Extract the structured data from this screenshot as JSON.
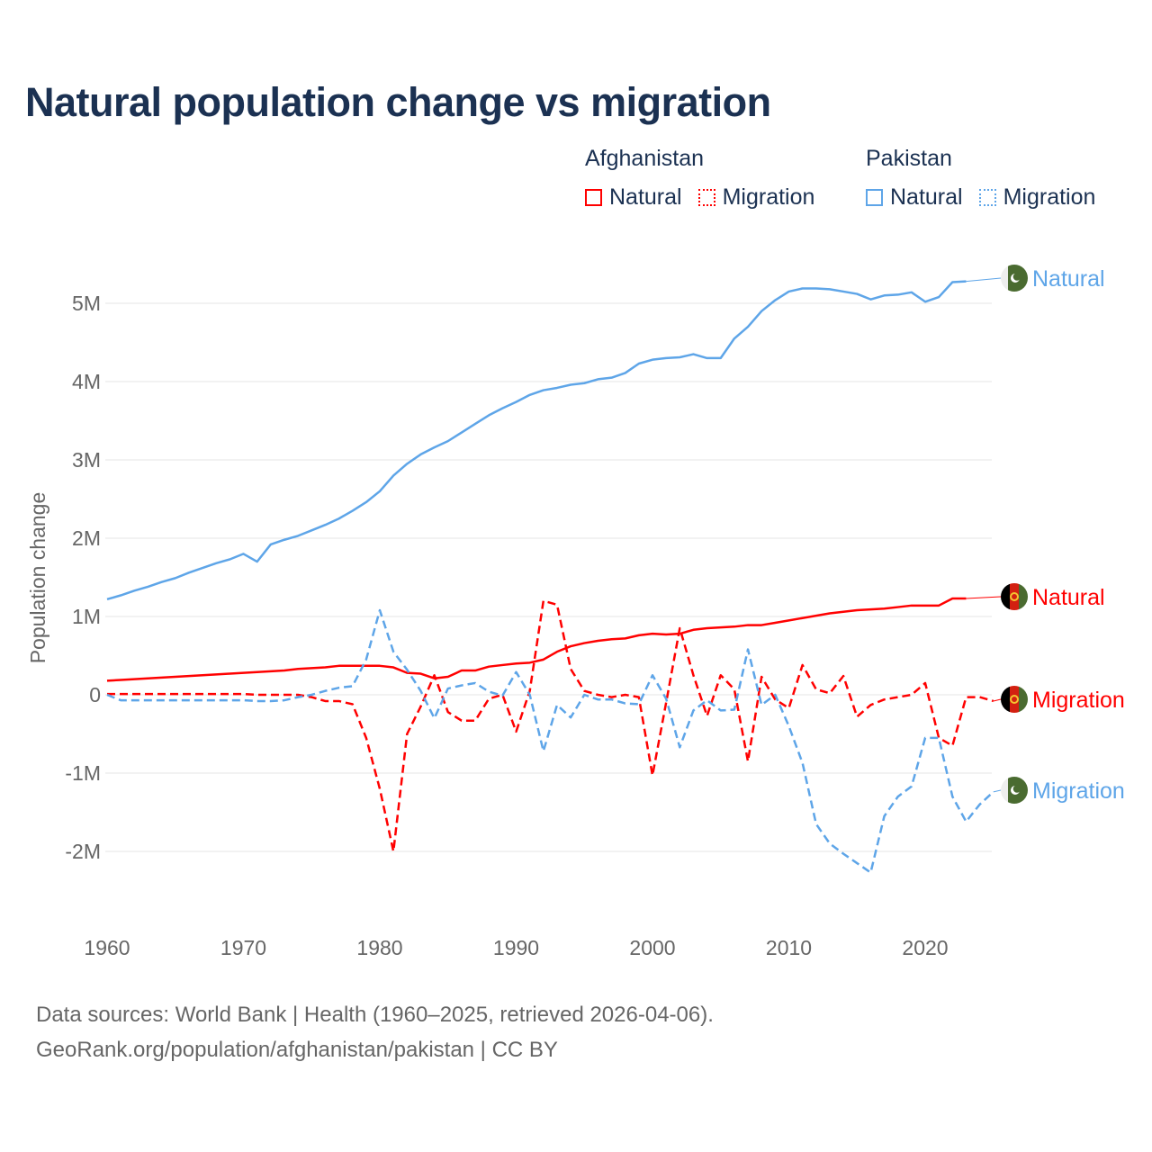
{
  "title": "Natural population change vs migration",
  "legend": {
    "groups": [
      {
        "name": "Afghanistan",
        "color": "#ff0000",
        "items": [
          "Natural",
          "Migration"
        ]
      },
      {
        "name": "Pakistan",
        "color": "#5ea5e8",
        "items": [
          "Natural",
          "Migration"
        ]
      }
    ]
  },
  "footer": {
    "line1": "Data sources: World Bank | Health (1960–2025, retrieved 2026-04-06).",
    "line2": "GeoRank.org/population/afghanistan/pakistan | CC BY"
  },
  "chart_data": {
    "type": "line",
    "title": "Natural population change vs migration",
    "xlabel": "",
    "ylabel": "Population change",
    "xlim": [
      1960,
      2025
    ],
    "ylim": [
      -2.6,
      5.6
    ],
    "x_ticks": [
      1960,
      1970,
      1980,
      1990,
      2000,
      2010,
      2020
    ],
    "y_ticks": [
      {
        "v": 5,
        "label": "5M"
      },
      {
        "v": 4,
        "label": "4M"
      },
      {
        "v": 3,
        "label": "3M"
      },
      {
        "v": 2,
        "label": "2M"
      },
      {
        "v": 1,
        "label": "1M"
      },
      {
        "v": 0,
        "label": "0"
      },
      {
        "v": -1,
        "label": "-1M"
      },
      {
        "v": -2,
        "label": "-2M"
      }
    ],
    "units": "millions",
    "grid": true,
    "legend_position": "top-right",
    "series": [
      {
        "name": "Pakistan Natural",
        "label": "Natural",
        "country": "Pakistan",
        "color": "#5ea5e8",
        "dash": false,
        "start_year": 1960,
        "values": [
          1.22,
          1.27,
          1.33,
          1.38,
          1.44,
          1.49,
          1.56,
          1.62,
          1.68,
          1.73,
          1.8,
          1.7,
          1.92,
          1.98,
          2.03,
          2.1,
          2.17,
          2.25,
          2.35,
          2.46,
          2.6,
          2.8,
          2.95,
          3.07,
          3.16,
          3.24,
          3.35,
          3.46,
          3.57,
          3.66,
          3.74,
          3.83,
          3.89,
          3.92,
          3.96,
          3.98,
          4.03,
          4.05,
          4.11,
          4.23,
          4.28,
          4.3,
          4.31,
          4.35,
          4.3,
          4.3,
          4.55,
          4.7,
          4.9,
          5.04,
          5.15,
          5.19,
          5.19,
          5.18,
          5.15,
          5.12,
          5.05,
          5.1,
          5.11,
          5.14,
          5.02,
          5.08,
          5.27,
          5.28
        ]
      },
      {
        "name": "Afghanistan Natural",
        "label": "Natural",
        "country": "Afghanistan",
        "color": "#ff0000",
        "dash": false,
        "start_year": 1960,
        "values": [
          0.18,
          0.19,
          0.2,
          0.21,
          0.22,
          0.23,
          0.24,
          0.25,
          0.26,
          0.27,
          0.28,
          0.29,
          0.3,
          0.31,
          0.33,
          0.34,
          0.35,
          0.37,
          0.37,
          0.37,
          0.37,
          0.35,
          0.28,
          0.27,
          0.21,
          0.23,
          0.31,
          0.31,
          0.36,
          0.38,
          0.4,
          0.41,
          0.45,
          0.55,
          0.62,
          0.66,
          0.69,
          0.71,
          0.72,
          0.76,
          0.78,
          0.77,
          0.78,
          0.83,
          0.85,
          0.86,
          0.87,
          0.89,
          0.89,
          0.92,
          0.95,
          0.98,
          1.01,
          1.04,
          1.06,
          1.08,
          1.09,
          1.1,
          1.12,
          1.14,
          1.14,
          1.14,
          1.23,
          1.23
        ]
      },
      {
        "name": "Afghanistan Migration",
        "label": "Migration",
        "country": "Afghanistan",
        "color": "#ff0000",
        "dash": true,
        "start_year": 1960,
        "values": [
          0.01,
          0.01,
          0.01,
          0.01,
          0.01,
          0.01,
          0.01,
          0.01,
          0.01,
          0.01,
          0.01,
          0.0,
          0.0,
          0.0,
          0.0,
          -0.03,
          -0.08,
          -0.08,
          -0.12,
          -0.55,
          -1.2,
          -2.0,
          -0.5,
          -0.15,
          0.25,
          -0.22,
          -0.33,
          -0.33,
          -0.05,
          0.0,
          -0.47,
          0.05,
          1.2,
          1.15,
          0.33,
          0.05,
          0.0,
          -0.03,
          0.0,
          -0.03,
          -1.03,
          -0.1,
          0.85,
          0.25,
          -0.27,
          0.25,
          0.07,
          -0.85,
          0.23,
          -0.06,
          -0.17,
          0.38,
          0.07,
          0.02,
          0.24,
          -0.28,
          -0.13,
          -0.06,
          -0.03,
          0.0,
          0.15,
          -0.55,
          -0.65,
          -0.03,
          -0.03,
          -0.08
        ]
      },
      {
        "name": "Pakistan Migration",
        "label": "Migration",
        "country": "Pakistan",
        "color": "#5ea5e8",
        "dash": true,
        "start_year": 1960,
        "values": [
          0.0,
          -0.07,
          -0.07,
          -0.07,
          -0.07,
          -0.07,
          -0.07,
          -0.07,
          -0.07,
          -0.07,
          -0.07,
          -0.08,
          -0.08,
          -0.07,
          -0.03,
          0.0,
          0.05,
          0.09,
          0.11,
          0.45,
          1.08,
          0.55,
          0.32,
          0.05,
          -0.3,
          0.08,
          0.12,
          0.15,
          0.04,
          -0.01,
          0.29,
          0.0,
          -0.72,
          -0.13,
          -0.29,
          0.0,
          -0.06,
          -0.06,
          -0.11,
          -0.12,
          0.25,
          -0.05,
          -0.67,
          -0.2,
          -0.07,
          -0.2,
          -0.19,
          0.58,
          -0.13,
          0.0,
          -0.4,
          -0.87,
          -1.65,
          -1.9,
          -2.03,
          -2.15,
          -2.27,
          -1.55,
          -1.3,
          -1.17,
          -0.55,
          -0.55,
          -1.3,
          -1.62,
          -1.4,
          -1.24
        ]
      }
    ]
  }
}
